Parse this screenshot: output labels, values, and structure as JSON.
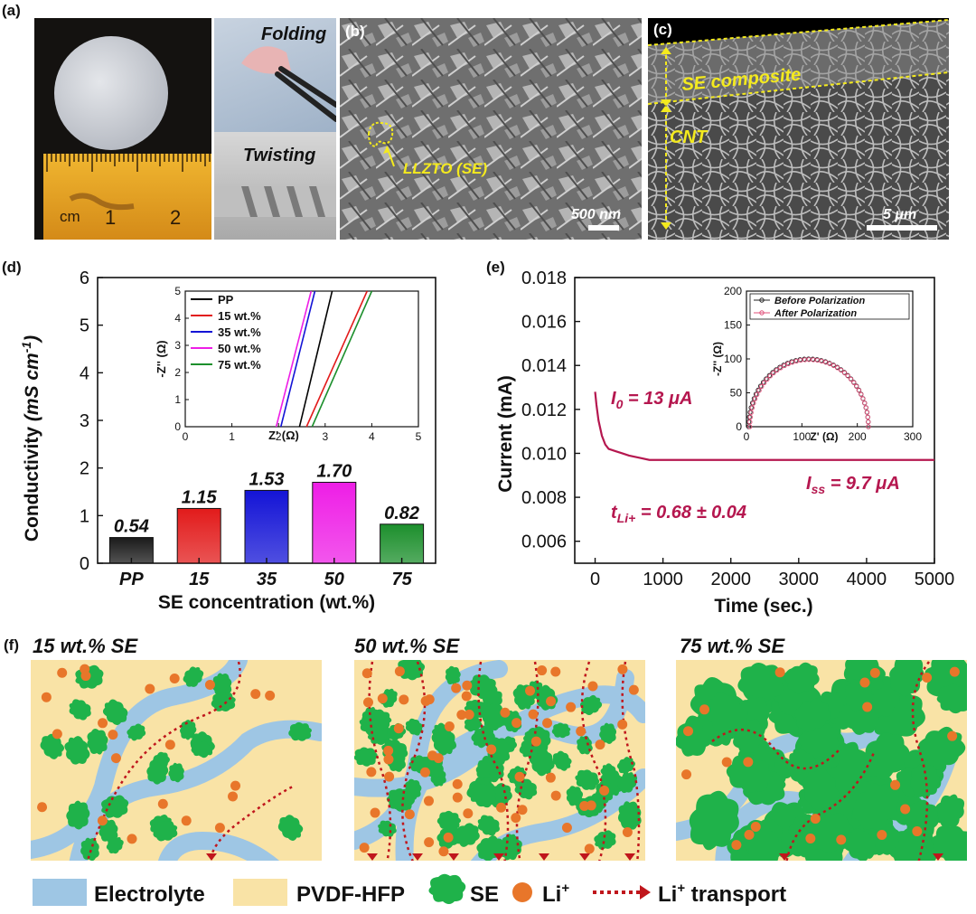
{
  "panels": {
    "a": {
      "label": "(a)",
      "folding": "Folding",
      "twisting": "Twisting",
      "ruler_unit": "cm",
      "ruler_ticks": [
        "1",
        "2"
      ]
    },
    "b": {
      "label": "(b)",
      "annotation": "LLZTO (SE)",
      "scale_bar": "500 nm"
    },
    "c": {
      "label": "(c)",
      "layer_top": "SE composite",
      "layer_bottom": "CNT",
      "scale_bar": "5 μm"
    },
    "d": {
      "label": "(d)"
    },
    "e": {
      "label": "(e)"
    },
    "f": {
      "label": "(f)",
      "titles": [
        "15 wt.% SE",
        "50 wt.% SE",
        "75 wt.% SE"
      ],
      "legend": {
        "electrolyte": "Electrolyte",
        "pvdf": "PVDF-HFP",
        "se": "SE",
        "li": "Li",
        "li_sup": "+",
        "transport": "Li",
        "transport_sup": "+",
        "transport_suffix": " transport"
      }
    }
  },
  "colors": {
    "electrolyte": "#9ec6e4",
    "pvdf": "#f9e3a6",
    "se": "#1fb24a",
    "li": "#e8762a",
    "transport": "#c0161c",
    "annotation_yellow": "#f4ea1e",
    "magenta_text": "#b5174f"
  },
  "chart_data": [
    {
      "type": "bar",
      "panel": "d",
      "categories": [
        "PP",
        "15",
        "35",
        "50",
        "75"
      ],
      "values": [
        0.54,
        1.15,
        1.53,
        1.7,
        0.82
      ],
      "value_labels": [
        "0.54",
        "1.15",
        "1.53",
        "1.70",
        "0.82"
      ],
      "bar_colors": [
        "#1a1a1a",
        "#e21b1b",
        "#1414d6",
        "#ee1ee6",
        "#1c8f2c"
      ],
      "xlabel": "SE concentration (wt.%)",
      "ylabel_prefix": "Conductivity ",
      "ylabel_unit": "(mS cm",
      "ylabel_sup": "-1",
      "ylabel_close": ")",
      "ylim": [
        0,
        6
      ],
      "yticks": [
        "0",
        "1",
        "2",
        "3",
        "4",
        "5",
        "6"
      ],
      "inset": {
        "type": "line",
        "xlabel": "Z' (Ω)",
        "ylabel": "-Z'' (Ω)",
        "xlim": [
          0,
          5
        ],
        "ylim": [
          0,
          5
        ],
        "xticks": [
          "0",
          "1",
          "2",
          "3",
          "4",
          "5"
        ],
        "yticks": [
          "0",
          "1",
          "2",
          "3",
          "4",
          "5"
        ],
        "series": [
          {
            "name": "PP",
            "color": "#000000",
            "x": [
              2.45,
              3.15
            ],
            "y": [
              0,
              5
            ]
          },
          {
            "name": "15 wt.%",
            "color": "#e21b1b",
            "x": [
              2.6,
              3.9
            ],
            "y": [
              0,
              5
            ]
          },
          {
            "name": "35 wt.%",
            "color": "#1414d6",
            "x": [
              2.05,
              2.78
            ],
            "y": [
              0,
              5
            ]
          },
          {
            "name": "50 wt.%",
            "color": "#ee1ee6",
            "x": [
              1.95,
              2.7
            ],
            "y": [
              0,
              5
            ]
          },
          {
            "name": "75 wt.%",
            "color": "#1c8f2c",
            "x": [
              2.72,
              4.0
            ],
            "y": [
              0,
              5
            ]
          }
        ]
      }
    },
    {
      "type": "line",
      "panel": "e",
      "xlabel": "Time (sec.)",
      "ylabel": "Current (mA)",
      "xlim": [
        -300,
        5000
      ],
      "ylim": [
        0.005,
        0.018
      ],
      "xticks": [
        "0",
        "1000",
        "2000",
        "3000",
        "4000",
        "5000"
      ],
      "yticks": [
        "0.006",
        "0.008",
        "0.010",
        "0.012",
        "0.014",
        "0.016",
        "0.018"
      ],
      "series": [
        {
          "name": "current",
          "color": "#b5174f",
          "x": [
            0,
            20,
            50,
            100,
            150,
            200,
            300,
            400,
            500,
            650,
            800,
            900,
            1500,
            3000,
            5000
          ],
          "y": [
            0.0128,
            0.0122,
            0.0115,
            0.0108,
            0.0104,
            0.0102,
            0.0101,
            0.01,
            0.0099,
            0.0098,
            0.0097,
            0.0097,
            0.0097,
            0.0097,
            0.0097
          ]
        }
      ],
      "annotations": {
        "i0_main": "I",
        "i0_sub": "0",
        "i0_value": " = 13 μA",
        "iss_main": "I",
        "iss_sub": "ss",
        "iss_value": " = 9.7 μA",
        "t_main": "t",
        "t_sub": "Li+",
        "t_value": " = 0.68 ± 0.04"
      },
      "inset": {
        "type": "scatter",
        "xlabel": "Z' (Ω)",
        "ylabel": "-Z'' (Ω)",
        "xlim": [
          0,
          300
        ],
        "ylim": [
          0,
          200
        ],
        "xticks": [
          "0",
          "100",
          "200",
          "300"
        ],
        "yticks": [
          "0",
          "50",
          "100",
          "150",
          "200"
        ],
        "series": [
          {
            "name": "Before Polarization",
            "color": "#222222",
            "center": 112,
            "radius": 108,
            "height": 100
          },
          {
            "name": "After Polarization",
            "color": "#e0507a",
            "center": 113,
            "radius": 107,
            "height": 99
          }
        ]
      }
    }
  ]
}
